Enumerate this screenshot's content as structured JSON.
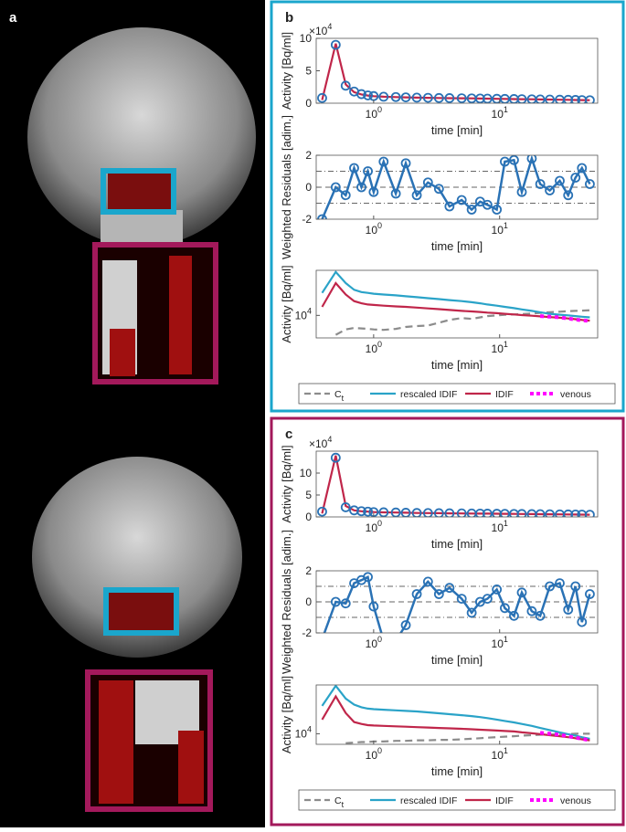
{
  "figure_labels": [
    "a",
    "b",
    "c"
  ],
  "chart_data": [
    {
      "type": "line",
      "ylabel": "Activity [Bq/ml]",
      "xlabel": "time [min]",
      "xscale": "log",
      "y_multiplier": "×10^4",
      "xlim": [
        0.35,
        60
      ],
      "xticks": [
        {
          "value": 1,
          "label": "10^0"
        },
        {
          "value": 10,
          "label": "10^1"
        }
      ],
      "ylim": [
        0,
        10
      ],
      "yticks": [
        0,
        5,
        10
      ],
      "x": [
        0.39,
        0.5,
        0.6,
        0.7,
        0.8,
        0.9,
        1,
        1.2,
        1.5,
        1.8,
        2.2,
        2.7,
        3.3,
        4,
        5,
        6,
        7,
        8,
        9.5,
        11,
        13,
        15,
        18,
        21,
        25,
        30,
        35,
        40,
        45,
        52
      ],
      "series": [
        {
          "color": "#c0264a",
          "style": "line",
          "values": [
            0.5,
            9.2,
            2.9,
            1.7,
            1.35,
            1.18,
            1.08,
            1.0,
            0.94,
            0.9,
            0.86,
            0.83,
            0.8,
            0.78,
            0.76,
            0.74,
            0.72,
            0.7,
            0.68,
            0.66,
            0.64,
            0.62,
            0.6,
            0.58,
            0.56,
            0.54,
            0.52,
            0.5,
            0.48,
            0.46
          ]
        },
        {
          "color": "#2a72b5",
          "style": "marker",
          "values": [
            0.8,
            9.0,
            2.7,
            1.8,
            1.4,
            1.2,
            1.1,
            1.0,
            0.95,
            0.9,
            0.86,
            0.83,
            0.8,
            0.78,
            0.76,
            0.74,
            0.72,
            0.7,
            0.68,
            0.66,
            0.64,
            0.62,
            0.6,
            0.58,
            0.56,
            0.54,
            0.52,
            0.5,
            0.48,
            0.46
          ]
        }
      ]
    },
    {
      "type": "line",
      "ylabel": "Weighted Residuals [adim.]",
      "xlabel": "time [min]",
      "xscale": "log",
      "xlim": [
        0.35,
        60
      ],
      "xticks": [
        {
          "value": 1,
          "label": "10^0"
        },
        {
          "value": 10,
          "label": "10^1"
        }
      ],
      "ylim": [
        -2,
        2
      ],
      "yticks": [
        -2,
        0,
        2
      ],
      "reference_lines": [
        1,
        0,
        -1
      ],
      "x": [
        0.39,
        0.5,
        0.6,
        0.7,
        0.8,
        0.9,
        1,
        1.2,
        1.5,
        1.8,
        2.2,
        2.7,
        3.3,
        4,
        5,
        6,
        7,
        8,
        9.5,
        11,
        13,
        15,
        18,
        21,
        25,
        30,
        35,
        40,
        45,
        52
      ],
      "series": [
        {
          "color": "#2a72b5",
          "style": "line+marker",
          "values": [
            -2,
            0,
            -0.5,
            1.2,
            0,
            1,
            -0.3,
            1.6,
            -0.4,
            1.5,
            -0.5,
            0.3,
            -0.1,
            -1.2,
            -0.8,
            -1.4,
            -0.9,
            -1.1,
            -1.4,
            1.6,
            1.7,
            -0.3,
            1.8,
            0.2,
            -0.2,
            0.4,
            -0.5,
            0.6,
            1.2,
            0.2
          ]
        }
      ]
    },
    {
      "type": "line",
      "ylabel": "Activity [Bq/ml]",
      "xlabel": "time [min]",
      "xscale": "log",
      "yscale": "log",
      "legend": true,
      "xlim": [
        0.35,
        60
      ],
      "xticks": [
        {
          "value": 1,
          "label": "10^0"
        },
        {
          "value": 10,
          "label": "10^1"
        }
      ],
      "ylim": [
        5000,
        40000
      ],
      "yticks": [
        {
          "value": 10000,
          "label": "10^4"
        }
      ],
      "x": [
        0.39,
        0.5,
        0.6,
        0.7,
        0.8,
        0.9,
        1,
        1.2,
        1.5,
        1.8,
        2.2,
        2.7,
        3.3,
        4,
        5,
        6,
        7,
        8,
        9.5,
        11,
        13,
        15,
        18,
        21,
        25,
        30,
        35,
        40,
        45,
        52
      ],
      "series": [
        {
          "name": "C_t",
          "color": "#8c8c8c",
          "style": "line",
          "dash": "dashed",
          "values": [
            null,
            5500,
            6500,
            6800,
            6700,
            6600,
            6500,
            6400,
            6600,
            7000,
            7200,
            7300,
            8000,
            8700,
            9200,
            9000,
            9400,
            9800,
            10000,
            10200,
            10300,
            10400,
            10600,
            10800,
            11000,
            11200,
            11400,
            11500,
            11600,
            11700
          ]
        },
        {
          "name": "rescaled IDIF",
          "color": "#2aa3c8",
          "style": "line",
          "values": [
            20000,
            38000,
            27000,
            22000,
            20500,
            20000,
            19500,
            19000,
            18500,
            18000,
            17500,
            17000,
            16500,
            16000,
            15500,
            15000,
            14500,
            14000,
            13500,
            13000,
            12500,
            12000,
            11500,
            11000,
            10500,
            10200,
            10000,
            9800,
            9600,
            9400
          ]
        },
        {
          "name": "IDIF",
          "color": "#c0264a",
          "style": "line",
          "values": [
            13000,
            27000,
            19000,
            15500,
            14500,
            14000,
            13800,
            13500,
            13200,
            13000,
            12700,
            12400,
            12100,
            11800,
            11500,
            11300,
            11100,
            10900,
            10700,
            10500,
            10300,
            10100,
            9900,
            9700,
            9500,
            9300,
            9100,
            8900,
            8700,
            8500
          ]
        },
        {
          "name": "venous",
          "color": "#ff00ff",
          "style": "line",
          "dash": "dotted",
          "values": [
            null,
            null,
            null,
            null,
            null,
            null,
            null,
            null,
            null,
            null,
            null,
            null,
            null,
            null,
            null,
            null,
            null,
            null,
            null,
            null,
            null,
            null,
            null,
            9800,
            9600,
            9400,
            9100,
            8800,
            8600,
            8400
          ]
        }
      ]
    },
    {
      "type": "line",
      "ylabel": "Activity [Bq/ml]",
      "xlabel": "time [min]",
      "xscale": "log",
      "y_multiplier": "×10^4",
      "xlim": [
        0.35,
        60
      ],
      "xticks": [
        {
          "value": 1,
          "label": "10^0"
        },
        {
          "value": 10,
          "label": "10^1"
        }
      ],
      "ylim": [
        0,
        15
      ],
      "yticks": [
        0,
        5,
        10
      ],
      "x": [
        0.39,
        0.5,
        0.6,
        0.7,
        0.8,
        0.9,
        1,
        1.2,
        1.5,
        1.8,
        2.2,
        2.7,
        3.3,
        4,
        5,
        6,
        7,
        8,
        9.5,
        11,
        13,
        15,
        18,
        21,
        25,
        30,
        35,
        40,
        45,
        52
      ],
      "series": [
        {
          "color": "#c0264a",
          "style": "line",
          "values": [
            0.8,
            14.0,
            2.5,
            1.5,
            1.3,
            1.2,
            1.1,
            1.05,
            1.0,
            0.95,
            0.9,
            0.88,
            0.85,
            0.82,
            0.8,
            0.78,
            0.76,
            0.74,
            0.72,
            0.7,
            0.68,
            0.66,
            0.64,
            0.62,
            0.6,
            0.58,
            0.56,
            0.54,
            0.52,
            0.5
          ]
        },
        {
          "color": "#2a72b5",
          "style": "marker",
          "values": [
            1.2,
            13.5,
            2.2,
            1.5,
            1.3,
            1.2,
            1.1,
            1.05,
            1.0,
            0.95,
            0.9,
            0.88,
            0.85,
            0.82,
            0.8,
            0.78,
            0.76,
            0.74,
            0.72,
            0.7,
            0.68,
            0.66,
            0.64,
            0.62,
            0.6,
            0.58,
            0.56,
            0.54,
            0.52,
            0.5
          ]
        }
      ]
    },
    {
      "type": "line",
      "ylabel": "Weighted Residuals [adim.]",
      "xlabel": "time [min]",
      "xscale": "log",
      "xlim": [
        0.35,
        60
      ],
      "xticks": [
        {
          "value": 1,
          "label": "10^0"
        },
        {
          "value": 10,
          "label": "10^1"
        }
      ],
      "ylim": [
        -2,
        2
      ],
      "yticks": [
        -2,
        0,
        2
      ],
      "reference_lines": [
        1,
        0,
        -1
      ],
      "x": [
        0.39,
        0.5,
        0.6,
        0.7,
        0.8,
        0.9,
        1,
        1.2,
        1.5,
        1.8,
        2.2,
        2.7,
        3.3,
        4,
        5,
        6,
        7,
        8,
        9.5,
        11,
        13,
        15,
        18,
        21,
        25,
        30,
        35,
        40,
        45,
        52
      ],
      "series": [
        {
          "color": "#2a72b5",
          "style": "line+marker",
          "values": [
            -2.4,
            0,
            -0.1,
            1.2,
            1.4,
            1.6,
            -0.3,
            -2.5,
            -2.5,
            -1.5,
            0.5,
            1.3,
            0.5,
            0.9,
            0.2,
            -0.7,
            0,
            0.2,
            0.8,
            -0.4,
            -0.9,
            0.6,
            -0.6,
            -0.9,
            1.0,
            1.2,
            -0.5,
            1.0,
            -1.3,
            0.5
          ]
        }
      ]
    },
    {
      "type": "line",
      "ylabel": "Activity [Bq/ml]",
      "xlabel": "time [min]",
      "xscale": "log",
      "yscale": "log",
      "legend": true,
      "xlim": [
        0.35,
        60
      ],
      "xticks": [
        {
          "value": 1,
          "label": "10^0"
        },
        {
          "value": 10,
          "label": "10^1"
        }
      ],
      "ylim": [
        8000,
        28000
      ],
      "yticks": [
        {
          "value": 10000,
          "label": "10^4"
        }
      ],
      "x": [
        0.39,
        0.5,
        0.6,
        0.7,
        0.8,
        0.9,
        1,
        1.2,
        1.5,
        1.8,
        2.2,
        2.7,
        3.3,
        4,
        5,
        6,
        7,
        8,
        9.5,
        11,
        13,
        15,
        18,
        21,
        25,
        30,
        35,
        40,
        45,
        52
      ],
      "series": [
        {
          "name": "C_t",
          "color": "#8c8c8c",
          "style": "line",
          "dash": "dashed",
          "values": [
            null,
            null,
            8200,
            8300,
            8400,
            8400,
            8500,
            8500,
            8600,
            8600,
            8700,
            8700,
            8800,
            8800,
            8900,
            9000,
            9100,
            9200,
            9300,
            9400,
            9500,
            9600,
            9700,
            9800,
            9850,
            9900,
            9950,
            10000,
            10000,
            10000
          ]
        },
        {
          "name": "rescaled IDIF",
          "color": "#2aa3c8",
          "style": "line",
          "values": [
            18000,
            27500,
            21000,
            18500,
            17500,
            17000,
            16800,
            16600,
            16400,
            16200,
            16000,
            15700,
            15400,
            15100,
            14800,
            14500,
            14200,
            13900,
            13500,
            13100,
            12700,
            12300,
            11800,
            11300,
            10800,
            10300,
            9900,
            9600,
            9300,
            9000
          ]
        },
        {
          "name": "IDIF",
          "color": "#c0264a",
          "style": "line",
          "values": [
            13500,
            22000,
            15500,
            12800,
            12300,
            12000,
            11900,
            11800,
            11700,
            11600,
            11500,
            11400,
            11300,
            11200,
            11100,
            11000,
            10900,
            10800,
            10700,
            10600,
            10500,
            10300,
            10100,
            9900,
            9700,
            9500,
            9300,
            9100,
            8900,
            8700
          ]
        },
        {
          "name": "venous",
          "color": "#ff00ff",
          "style": "line",
          "dash": "dotted",
          "values": [
            null,
            null,
            null,
            null,
            null,
            null,
            null,
            null,
            null,
            null,
            null,
            null,
            null,
            null,
            null,
            null,
            null,
            null,
            null,
            null,
            null,
            null,
            null,
            10200,
            10000,
            9800,
            9500,
            9200,
            9000,
            8700
          ]
        }
      ]
    }
  ]
}
